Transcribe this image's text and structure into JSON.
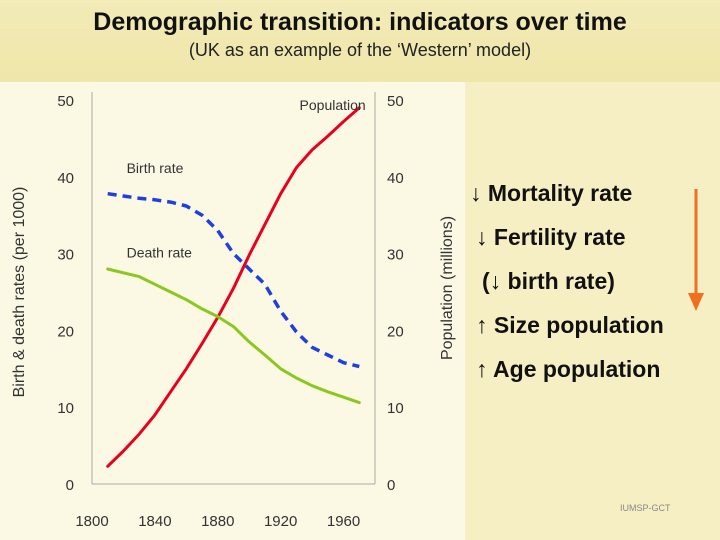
{
  "header": {
    "title": "Demographic transition: indicators over time",
    "subtitle": "(UK as an example of the ‘Western’ model)"
  },
  "chart_data": {
    "type": "line",
    "title": "",
    "xlabel": "",
    "ylabel": "Birth & death rates (per 1000)",
    "y2label": "Population (millions)",
    "xlim": [
      1800,
      1980
    ],
    "ylim": [
      0,
      50
    ],
    "y2lim": [
      0,
      50
    ],
    "x_ticks": [
      "1800",
      "1840",
      "1880",
      "1920",
      "1960"
    ],
    "y_ticks": [
      "0",
      "10",
      "20",
      "30",
      "40",
      "50"
    ],
    "y2_ticks": [
      "0",
      "10",
      "20",
      "30",
      "40",
      "50"
    ],
    "grid": false,
    "series": [
      {
        "name": "Population",
        "axis": "right",
        "color": "#e8001c",
        "style": "solid",
        "x": [
          1810,
          1820,
          1830,
          1840,
          1850,
          1860,
          1870,
          1880,
          1890,
          1900,
          1910,
          1920,
          1930,
          1940,
          1950,
          1960,
          1970
        ],
        "values": [
          2.3,
          4.3,
          6.5,
          9.0,
          12.0,
          15.0,
          18.3,
          21.7,
          25.5,
          29.8,
          33.8,
          37.8,
          41.2,
          43.5,
          45.3,
          47.2,
          49.0
        ]
      },
      {
        "name": "Birth rate",
        "axis": "left",
        "color": "#1f3fe0",
        "style": "dashed",
        "x": [
          1810,
          1820,
          1830,
          1840,
          1850,
          1860,
          1870,
          1880,
          1890,
          1900,
          1910,
          1920,
          1930,
          1940,
          1950,
          1960,
          1970
        ],
        "values": [
          37.8,
          37.5,
          37.2,
          37.0,
          36.7,
          36.2,
          35.0,
          33.0,
          30.0,
          28.0,
          26.0,
          22.5,
          19.8,
          17.8,
          16.8,
          15.8,
          15.3
        ]
      },
      {
        "name": "Death rate",
        "axis": "left",
        "color": "#8ac820",
        "style": "solid",
        "x": [
          1810,
          1820,
          1830,
          1840,
          1850,
          1860,
          1870,
          1880,
          1890,
          1900,
          1910,
          1920,
          1930,
          1940,
          1950,
          1960,
          1970
        ],
        "values": [
          28.0,
          27.5,
          27.0,
          26.0,
          25.0,
          24.0,
          22.8,
          21.8,
          20.5,
          18.5,
          16.8,
          15.0,
          13.8,
          12.8,
          12.0,
          11.3,
          10.6
        ]
      }
    ],
    "annotations": [
      {
        "text": "Population",
        "x": 1932,
        "y": 48.7,
        "axis": "right"
      },
      {
        "text": "Birth rate",
        "x": 1822,
        "y": 40.5,
        "axis": "left"
      },
      {
        "text": "Death rate",
        "x": 1822,
        "y": 29.5,
        "axis": "left"
      }
    ]
  },
  "bullets": [
    {
      "text": "↓ Mortality rate"
    },
    {
      "text": "↓ Fertility rate"
    },
    {
      "text": "(↓ birth rate)"
    },
    {
      "text": "↑ Size population"
    },
    {
      "text": "↑ Age population"
    }
  ],
  "arrow_color": "#f07020",
  "footer": {
    "copyright": "IUMSP-GCT"
  }
}
